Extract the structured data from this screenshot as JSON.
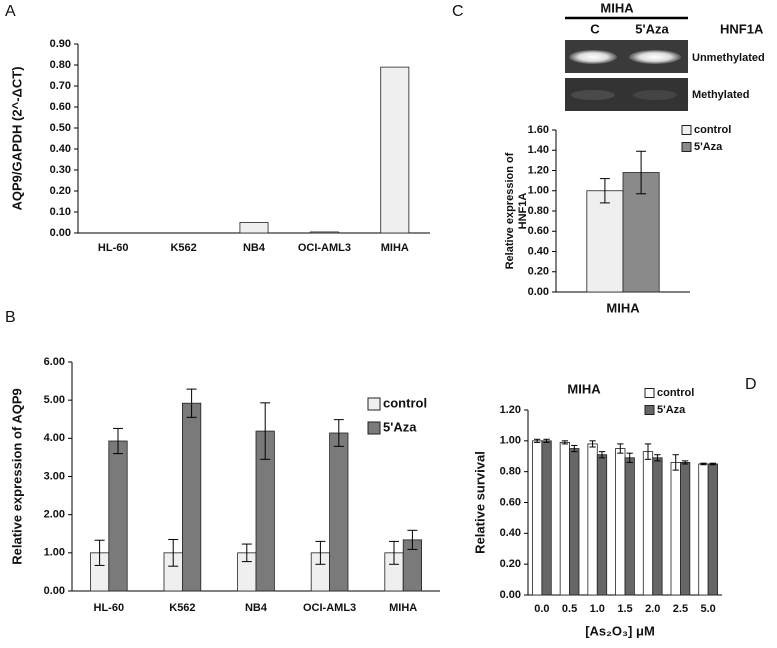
{
  "chart_data": [
    {
      "type": "bar",
      "panel": "A",
      "ylabel": "AQP9/GAPDH (2^-ΔCT)",
      "categories": [
        "HL-60",
        "K562",
        "NB4",
        "OCI-AML3",
        "MIHA"
      ],
      "values": [
        0,
        0,
        0.05,
        0.005,
        0.79
      ],
      "color": "#efefef",
      "ylim": [
        0,
        0.9
      ],
      "yticks": [
        {
          "value": 0,
          "label": "0.00"
        },
        {
          "value": 0.1,
          "label": "0.10"
        },
        {
          "value": 0.2,
          "label": "0.20"
        },
        {
          "value": 0.3,
          "label": "0.30"
        },
        {
          "value": 0.4,
          "label": "0.40"
        },
        {
          "value": 0.5,
          "label": "0.50"
        },
        {
          "value": 0.6,
          "label": "0.60"
        },
        {
          "value": 0.7,
          "label": "0.70"
        },
        {
          "value": 0.8,
          "label": "0.80"
        },
        {
          "value": 0.9,
          "label": "0.90"
        }
      ]
    },
    {
      "type": "bar",
      "panel": "B",
      "ylabel": "Relative expression of AQP9",
      "categories": [
        "HL-60",
        "K562",
        "NB4",
        "OCI-AML3",
        "MIHA"
      ],
      "series": [
        {
          "name": "control",
          "color": "#efefef",
          "values": [
            1.0,
            1.0,
            1.0,
            1.0,
            1.0
          ],
          "errors": [
            0.33,
            0.35,
            0.23,
            0.3,
            0.3
          ]
        },
        {
          "name": "5'Aza",
          "color": "#7a7a7a",
          "values": [
            3.93,
            4.92,
            4.19,
            4.14,
            1.34
          ],
          "errors": [
            0.33,
            0.37,
            0.74,
            0.35,
            0.25
          ]
        }
      ],
      "ylim": [
        0,
        6
      ],
      "yticks": [
        {
          "value": 0,
          "label": "0.00"
        },
        {
          "value": 1,
          "label": "1.00"
        },
        {
          "value": 2,
          "label": "2.00"
        },
        {
          "value": 3,
          "label": "3.00"
        },
        {
          "value": 4,
          "label": "4.00"
        },
        {
          "value": 5,
          "label": "5.00"
        },
        {
          "value": 6,
          "label": "6.00"
        }
      ]
    },
    {
      "type": "bar",
      "panel": "C",
      "ylabel": [
        "Relative expression of",
        "HNF1A"
      ],
      "categories": [
        "MIHA"
      ],
      "series": [
        {
          "name": "control",
          "color": "#efefef",
          "values": [
            1.0
          ],
          "errors": [
            0.12
          ]
        },
        {
          "name": "5'Aza",
          "color": "#8a8a8a",
          "values": [
            1.18
          ],
          "errors": [
            0.21
          ]
        }
      ],
      "ylim": [
        0,
        1.6
      ],
      "yticks": [
        {
          "value": 0,
          "label": "0.00"
        },
        {
          "value": 0.2,
          "label": "0.20"
        },
        {
          "value": 0.4,
          "label": "0.40"
        },
        {
          "value": 0.6,
          "label": "0.60"
        },
        {
          "value": 0.8,
          "label": "0.80"
        },
        {
          "value": 1,
          "label": "1.00"
        },
        {
          "value": 1.2,
          "label": "1.20"
        },
        {
          "value": 1.4,
          "label": "1.40"
        },
        {
          "value": 1.6,
          "label": "1.60"
        }
      ]
    },
    {
      "type": "bar",
      "panel": "D",
      "title": "MIHA",
      "ylabel": "Relative survival",
      "xlabel": "[As₂O₃] μM",
      "categories": [
        "0.0",
        "0.5",
        "1.0",
        "1.5",
        "2.0",
        "2.5",
        "5.0"
      ],
      "series": [
        {
          "name": "control",
          "color": "#ffffff",
          "values": [
            1.0,
            0.99,
            0.98,
            0.95,
            0.93,
            0.86,
            0.85
          ],
          "errors": [
            0.01,
            0.01,
            0.02,
            0.03,
            0.05,
            0.05,
            0.005
          ]
        },
        {
          "name": "5'Aza",
          "color": "#666666",
          "values": [
            1.0,
            0.95,
            0.91,
            0.89,
            0.89,
            0.86,
            0.85
          ],
          "errors": [
            0.01,
            0.02,
            0.02,
            0.03,
            0.02,
            0.01,
            0.005
          ]
        }
      ],
      "ylim": [
        0,
        1.2
      ],
      "yticks": [
        {
          "value": 0,
          "label": "0.00"
        },
        {
          "value": 0.2,
          "label": "0.20"
        },
        {
          "value": 0.4,
          "label": "0.40"
        },
        {
          "value": 0.6,
          "label": "0.60"
        },
        {
          "value": 0.8,
          "label": "0.80"
        },
        {
          "value": 1,
          "label": "1.00"
        },
        {
          "value": 1.2,
          "label": "1.20"
        }
      ]
    }
  ],
  "gel": {
    "title": "MIHA",
    "lanes": [
      "C",
      "5'Aza"
    ],
    "gene": "HNF1A",
    "rows": [
      "Unmethylated",
      "Methylated"
    ]
  }
}
